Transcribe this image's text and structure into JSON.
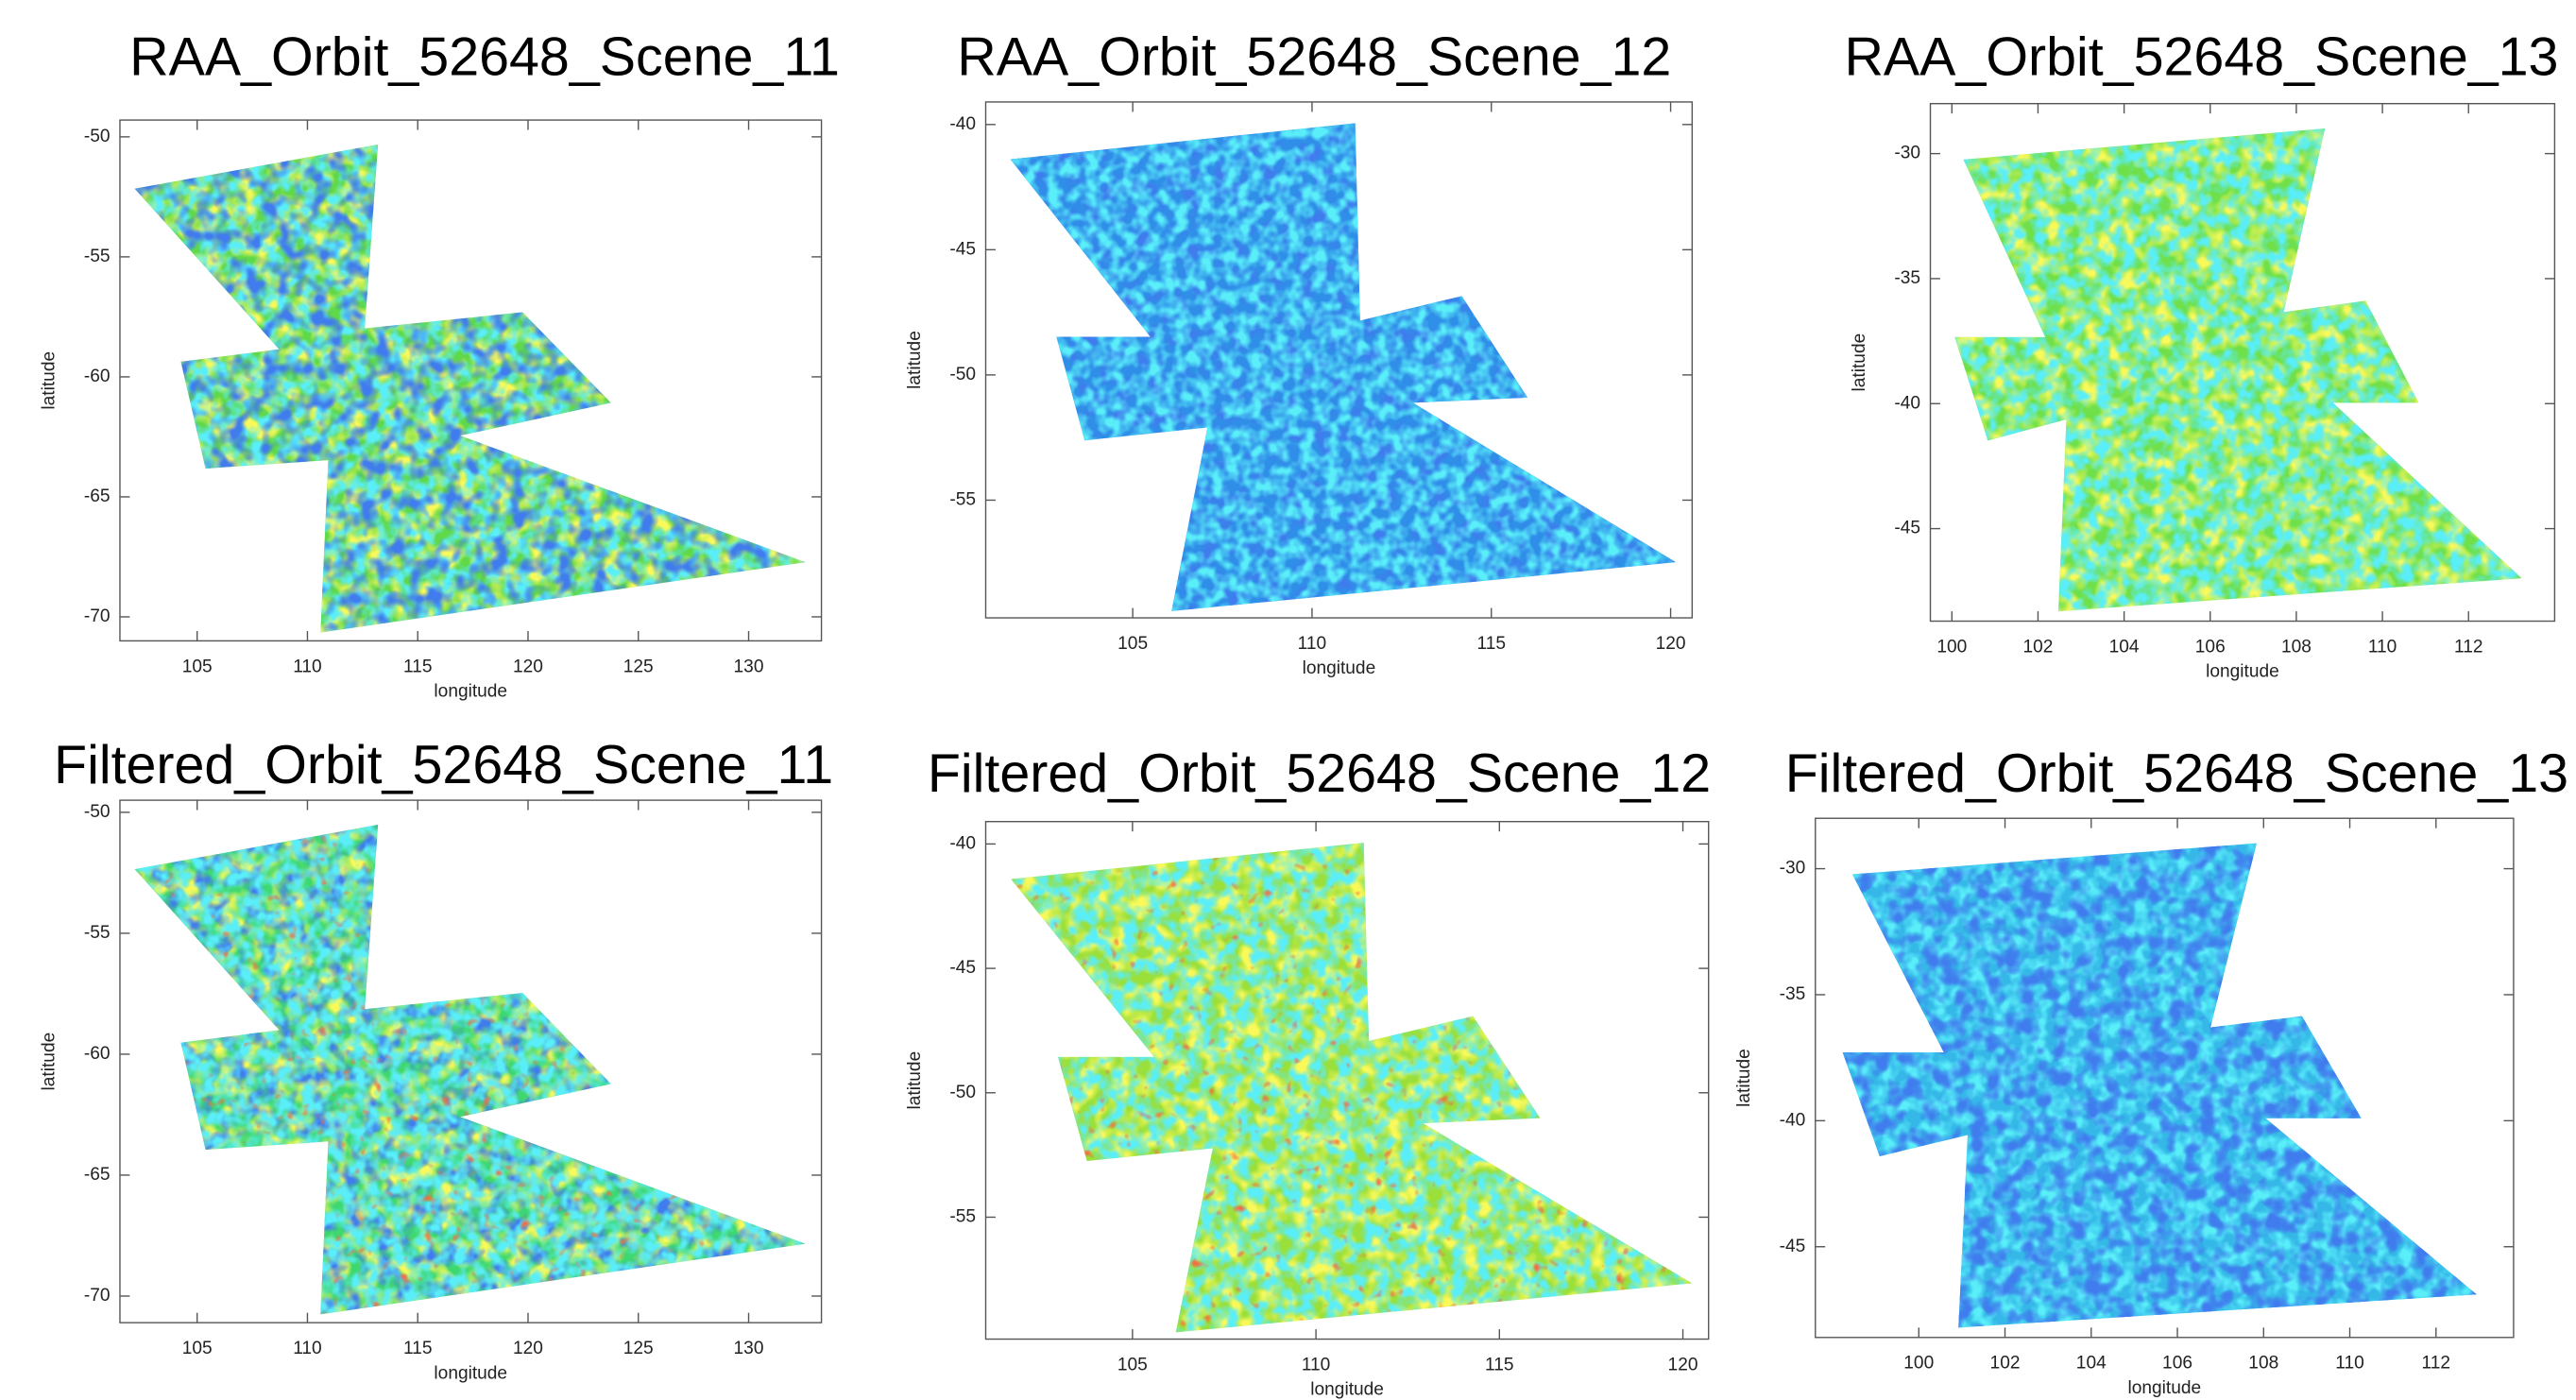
{
  "chart_data": [
    {
      "type": "map",
      "title": "RAA_Orbit_52648_Scene_11",
      "x_label": "longitude",
      "y_label": "latitude",
      "xlim": [
        101.5,
        133.3
      ],
      "ylim": [
        -71,
        -49.3
      ],
      "xticks": [
        105,
        110,
        115,
        120,
        125,
        130
      ],
      "yticks": [
        -50,
        -55,
        -60,
        -65,
        -70
      ]
    },
    {
      "type": "map",
      "title": "RAA_Orbit_52648_Scene_12",
      "x_label": "longitude",
      "y_label": "latitude",
      "xlim": [
        100.9,
        120.6
      ],
      "ylim": [
        -59.7,
        -39.1
      ],
      "xticks": [
        105,
        110,
        115,
        120
      ],
      "yticks": [
        -40,
        -45,
        -50,
        -55
      ]
    },
    {
      "type": "map",
      "title": "RAA_Orbit_52648_Scene_13",
      "x_label": "longitude",
      "y_label": "latitude",
      "xlim": [
        99.5,
        114
      ],
      "ylim": [
        -48.7,
        -28
      ],
      "xticks": [
        100,
        102,
        104,
        106,
        108,
        110,
        112
      ],
      "yticks": [
        -30,
        -35,
        -40,
        -45
      ]
    },
    {
      "type": "map",
      "title": "Filtered_Orbit_52648_Scene_11",
      "x_label": "longitude",
      "y_label": "latitude",
      "xlim": [
        101.5,
        133.3
      ],
      "ylim": [
        -71.1,
        -49.5
      ],
      "xticks": [
        105,
        110,
        115,
        120,
        125,
        130
      ],
      "yticks": [
        -50,
        -55,
        -60,
        -65,
        -70
      ]
    },
    {
      "type": "map",
      "title": "Filtered_Orbit_52648_Scene_12",
      "x_label": "longitude",
      "y_label": "latitude",
      "xlim": [
        101,
        120.7
      ],
      "ylim": [
        -59.9,
        -39.1
      ],
      "xticks": [
        105,
        110,
        115,
        120
      ],
      "yticks": [
        -40,
        -45,
        -50,
        -55
      ]
    },
    {
      "type": "map",
      "title": "Filtered_Orbit_52648_Scene_13",
      "x_label": "longitude",
      "y_label": "latitude",
      "xlim": [
        97.6,
        113.8
      ],
      "ylim": [
        -48.6,
        -28
      ],
      "xticks": [
        100,
        102,
        104,
        106,
        108,
        110,
        112
      ],
      "yticks": [
        -30,
        -35,
        -40,
        -45
      ]
    }
  ]
}
